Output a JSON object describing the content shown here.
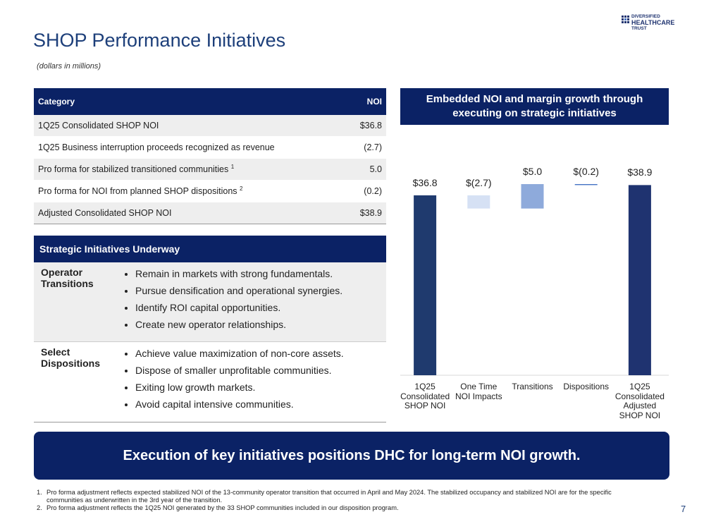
{
  "header": {
    "title": "SHOP Performance Initiatives",
    "subtitle": "(dollars in millions)",
    "logo": [
      "DIVERSIFIED",
      "HEALTHCARE",
      "TRUST"
    ]
  },
  "table": {
    "columns": [
      "Category",
      "NOI"
    ],
    "rows": [
      {
        "label": "1Q25 Consolidated SHOP NOI",
        "value": "$36.8"
      },
      {
        "label": "1Q25 Business interruption proceeds recognized as revenue",
        "value": "(2.7)"
      },
      {
        "label": "Pro forma for stabilized transitioned communities",
        "sup": "1",
        "value": "5.0"
      },
      {
        "label": "Pro forma for NOI from planned SHOP dispositions",
        "sup": "2",
        "value": "(0.2)"
      },
      {
        "label": "Adjusted Consolidated SHOP NOI",
        "value": "$38.9"
      }
    ]
  },
  "initiatives": {
    "title": "Strategic Initiatives Underway",
    "sections": [
      {
        "heading": "Operator Transitions",
        "bullets": [
          "Remain in markets with strong fundamentals.",
          "Pursue densification and operational synergies.",
          "Identify ROI capital opportunities.",
          "Create new operator relationships."
        ]
      },
      {
        "heading": "Select Dispositions",
        "bullets": [
          "Achieve value maximization of non-core assets.",
          "Dispose of smaller unprofitable communities.",
          "Exiting low growth markets.",
          "Avoid capital intensive communities."
        ]
      }
    ]
  },
  "chart_data": {
    "type": "waterfall",
    "title": "Embedded NOI and margin growth through executing on strategic initiatives",
    "categories": [
      "1Q25 Consolidated SHOP NOI",
      "One Time NOI Impacts",
      "Transitions",
      "Dispositions",
      "1Q25 Consolidated Adjusted SHOP NOI"
    ],
    "values": [
      36.8,
      -2.7,
      5.0,
      -0.2,
      38.9
    ],
    "value_labels": [
      "$36.8",
      "$(2.7)",
      "$5.0",
      "$(0.2)",
      "$38.9"
    ],
    "totals": [
      true,
      false,
      false,
      false,
      true
    ],
    "colors": [
      "#1f3a6e",
      "#d6e1f4",
      "#8eaadb",
      "#4472c4",
      "#1f3370"
    ]
  },
  "banner": "Execution of key initiatives positions DHC for long-term NOI growth.",
  "footnotes": [
    {
      "number": "1.",
      "text": "Pro forma adjustment reflects expected stabilized NOI of the 13-community operator transition that occurred in April and May 2024. The stabilized occupancy and stabilized NOI are for the specific communities as underwritten in the 3rd year of the transition."
    },
    {
      "number": "2.",
      "text": "Pro forma adjustment reflects the 1Q25 NOI generated by the 33 SHOP communities included in our disposition program."
    }
  ],
  "page_number": "7"
}
